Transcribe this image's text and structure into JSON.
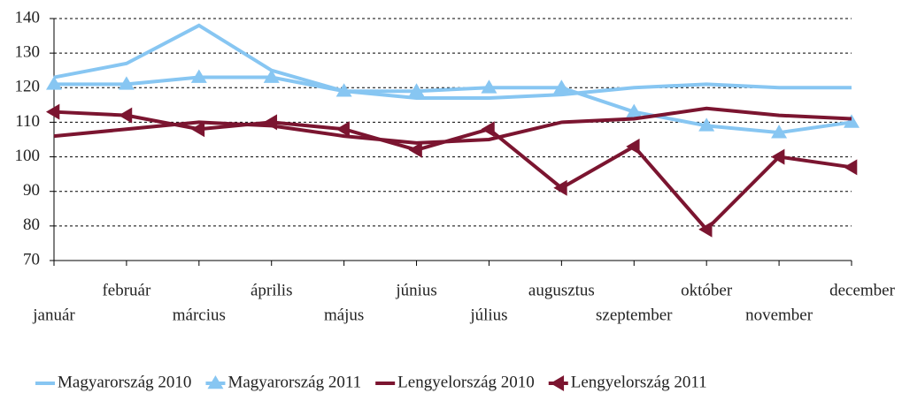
{
  "chart_data": {
    "type": "line",
    "categories": [
      "január",
      "február",
      "március",
      "április",
      "május",
      "június",
      "július",
      "augusztus",
      "szeptember",
      "október",
      "november",
      "december"
    ],
    "series": [
      {
        "name": "Magyarország 2010",
        "color": "#87c6f2",
        "marker": "none",
        "values": [
          123,
          127,
          138,
          125,
          119,
          117,
          117,
          118,
          120,
          121,
          120,
          120
        ]
      },
      {
        "name": "Magyarország 2011",
        "color": "#87c6f2",
        "marker": "triangle",
        "values": [
          121,
          121,
          123,
          123,
          119,
          119,
          120,
          120,
          113,
          109,
          107,
          110
        ]
      },
      {
        "name": "Lengyelország 2010",
        "color": "#7b1530",
        "marker": "none",
        "values": [
          106,
          108,
          110,
          109,
          106,
          104,
          105,
          110,
          111,
          114,
          112,
          111
        ]
      },
      {
        "name": "Lengyelország 2011",
        "color": "#7b1530",
        "marker": "triangle-left",
        "values": [
          113,
          112,
          108,
          110,
          108,
          102,
          108,
          91,
          103,
          79,
          100,
          97
        ]
      }
    ],
    "ylim": [
      70,
      140
    ],
    "yticks": [
      70,
      80,
      90,
      100,
      110,
      120,
      130,
      140
    ],
    "grid": true,
    "legend": "bottom"
  }
}
